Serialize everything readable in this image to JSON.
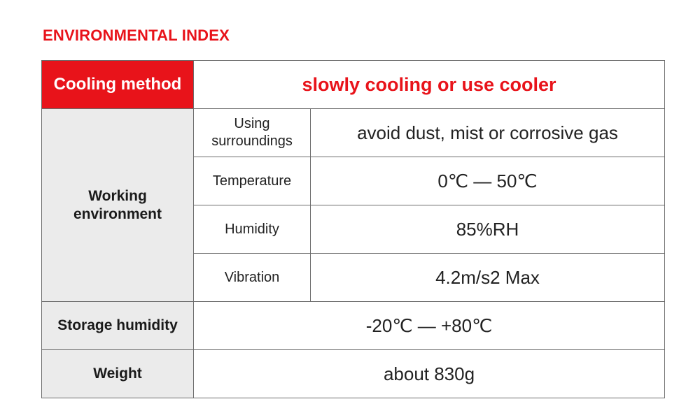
{
  "title": "ENVIRONMENTAL INDEX",
  "colors": {
    "accent": "#e8131a",
    "label_background": "#ebebeb",
    "border": "#6b6b6b"
  },
  "cooling": {
    "label": "Cooling method",
    "value": "slowly cooling or use cooler"
  },
  "working": {
    "label_line1": "Working",
    "label_line2": "environment",
    "rows": [
      {
        "label_line1": "Using",
        "label_line2": "surroundings",
        "value": "avoid dust, mist or corrosive gas"
      },
      {
        "label_line1": "Temperature",
        "value": "0℃ — 50℃"
      },
      {
        "label_line1": "Humidity",
        "value": "85%RH"
      },
      {
        "label_line1": "Vibration",
        "value": "4.2m/s2 Max"
      }
    ]
  },
  "storage": {
    "label": "Storage humidity",
    "value": "-20℃ — +80℃"
  },
  "weight": {
    "label": "Weight",
    "value": "about 830g"
  }
}
